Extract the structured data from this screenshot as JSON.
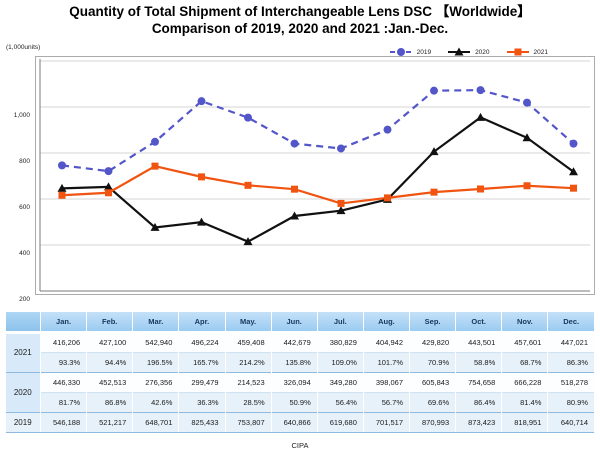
{
  "header": {
    "title_line1": "Quantity of Total Shipment of Interchangeable Lens DSC 【Worldwide】",
    "title_line2": "Comparison of 2019, 2020 and 2021 :Jan.-Dec."
  },
  "source_label": "CIPA",
  "chart_data": {
    "type": "line",
    "title": "Quantity of Total Shipment of Interchangeable Lens DSC 【Worldwide】 Comparison of 2019, 2020 and 2021 :Jan.-Dec.",
    "unit_label": "(1,000units)",
    "categories": [
      "Jan.",
      "Feb.",
      "Mar.",
      "Apr.",
      "May.",
      "Jun.",
      "Jul.",
      "Aug.",
      "Sep.",
      "Oct.",
      "Nov.",
      "Dec."
    ],
    "ylim": [
      0,
      1000
    ],
    "y_tick_labels": [
      "1,000",
      "800",
      "600",
      "400",
      "200",
      "0"
    ],
    "grid": true,
    "legend_position": "top-right",
    "series": [
      {
        "name": "2019",
        "color": "#5356c9",
        "line_style": "dashed",
        "marker": "circle",
        "values": [
          546.2,
          521.2,
          648.7,
          825.4,
          753.8,
          640.9,
          619.7,
          701.5,
          871.0,
          873.4,
          819.0,
          640.7
        ]
      },
      {
        "name": "2020",
        "color": "#111111",
        "line_style": "solid",
        "marker": "triangle",
        "values": [
          446.3,
          452.5,
          276.4,
          299.5,
          214.5,
          326.1,
          349.3,
          398.1,
          605.8,
          754.7,
          666.2,
          518.3
        ]
      },
      {
        "name": "2021",
        "color": "#f05410",
        "line_style": "solid",
        "marker": "square",
        "values": [
          416.2,
          427.1,
          542.9,
          496.2,
          459.4,
          442.7,
          380.8,
          404.9,
          429.8,
          443.5,
          457.6,
          447.0
        ]
      }
    ]
  },
  "table": {
    "months": [
      "Jan.",
      "Feb.",
      "Mar.",
      "Apr.",
      "May.",
      "Jun.",
      "Jul.",
      "Aug.",
      "Sep.",
      "Oct.",
      "Nov.",
      "Dec."
    ],
    "groups": [
      {
        "year": "2021",
        "values": [
          "416,206",
          "427,100",
          "542,940",
          "496,224",
          "459,408",
          "442,679",
          "380,829",
          "404,942",
          "429,820",
          "443,501",
          "457,601",
          "447,021"
        ],
        "percent": [
          "93.3%",
          "94.4%",
          "196.5%",
          "165.7%",
          "214.2%",
          "135.8%",
          "109.0%",
          "101.7%",
          "70.9%",
          "58.8%",
          "68.7%",
          "86.3%"
        ]
      },
      {
        "year": "2020",
        "values": [
          "446,330",
          "452,513",
          "276,356",
          "299,479",
          "214,523",
          "326,094",
          "349,280",
          "398,067",
          "605,843",
          "754,658",
          "666,228",
          "518,278"
        ],
        "percent": [
          "81.7%",
          "86.8%",
          "42.6%",
          "36.3%",
          "28.5%",
          "50.9%",
          "56.4%",
          "56.7%",
          "69.6%",
          "86.4%",
          "81.4%",
          "80.9%"
        ]
      },
      {
        "year": "2019",
        "values": [
          "546,188",
          "521,217",
          "648,701",
          "825,433",
          "753,807",
          "640,866",
          "619,680",
          "701,517",
          "870,993",
          "873,423",
          "818,951",
          "640,714"
        ],
        "percent": null
      }
    ]
  }
}
